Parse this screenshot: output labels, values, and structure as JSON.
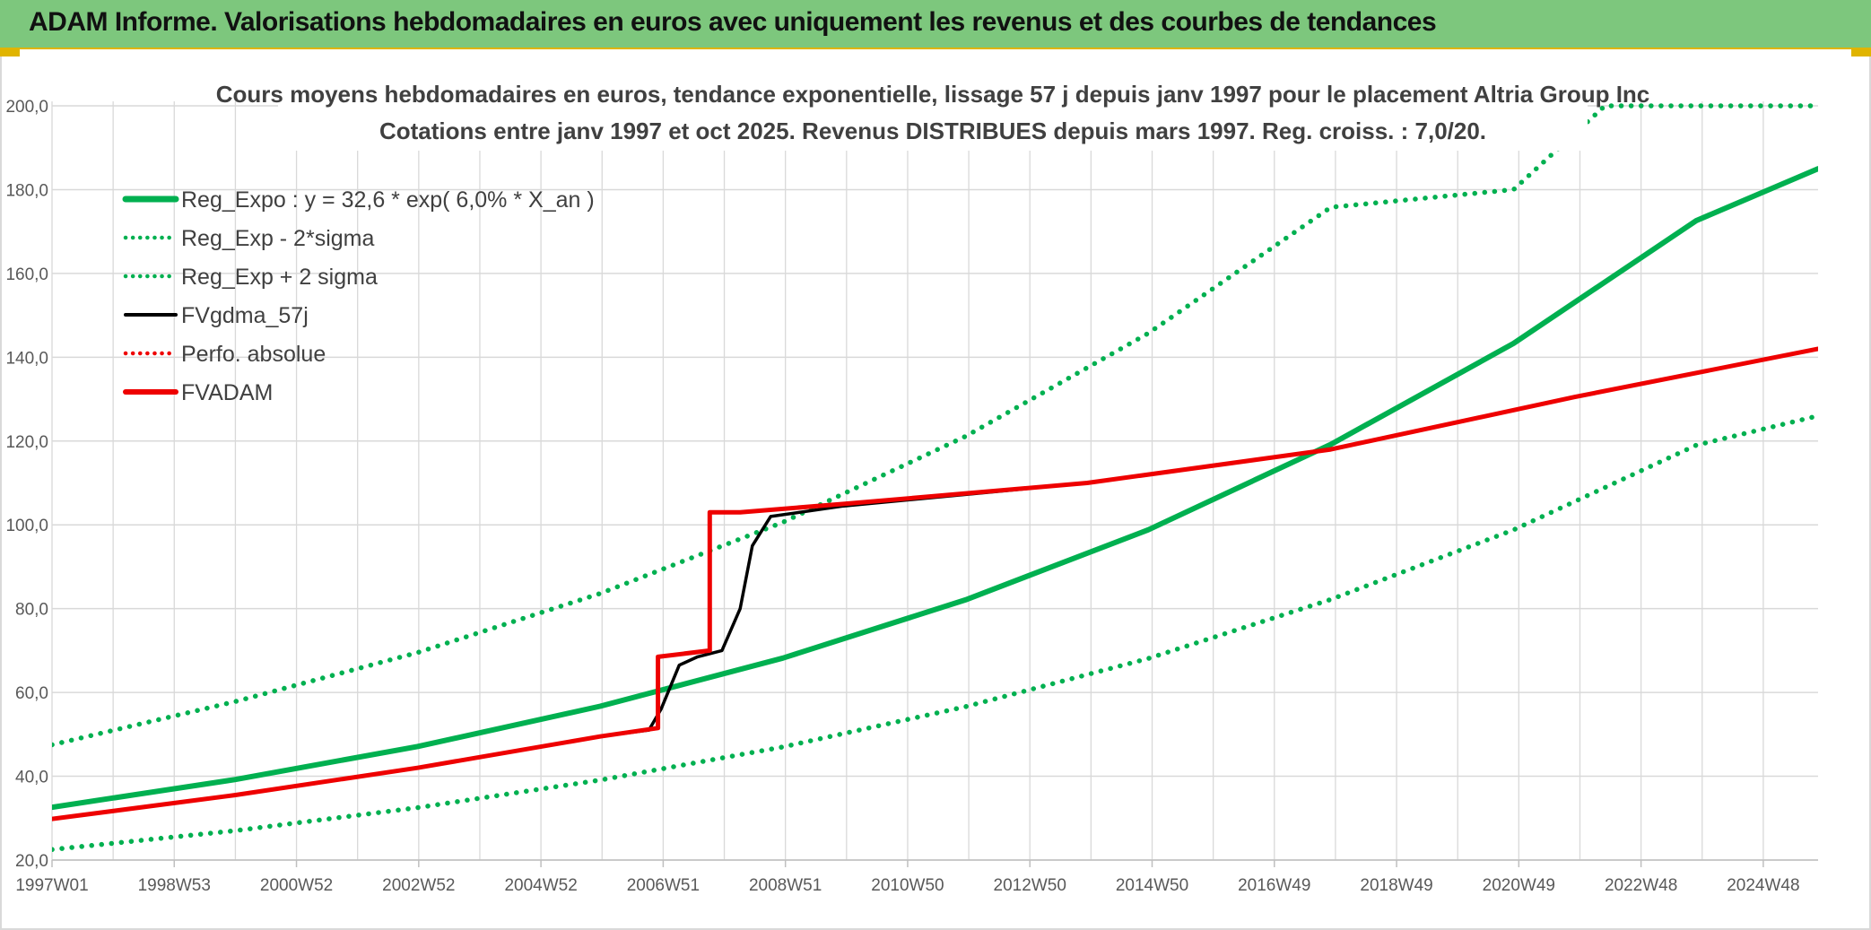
{
  "header": {
    "title": "ADAM Informe. Valorisations hebdomadaires en euros avec uniquement les revenus et des courbes de tendances"
  },
  "colors": {
    "header_bg": "#7dc77d",
    "accent_gold": "#e0b400",
    "green": "#00b050",
    "red": "#ee0000",
    "black": "#000000",
    "grid": "#d9d9d9"
  },
  "chart_data": {
    "type": "line",
    "title_lines": [
      "Cours moyens hebdomadaires en euros, tendance exponentielle, lissage 57 j depuis janv 1997 pour le placement Altria Group Inc",
      "Cotations entre janv 1997 et oct 2025. Revenus DISTRIBUES depuis mars 1997. Reg. croiss. : 7,0/20."
    ],
    "x_tick_labels": [
      "1997W01",
      "1998W53",
      "2000W52",
      "2002W52",
      "2004W52",
      "2006W51",
      "2008W51",
      "2010W50",
      "2012W50",
      "2014W50",
      "2016W49",
      "2018W49",
      "2020W49",
      "2022W48",
      "2024W48"
    ],
    "x_range_years": [
      1997.0,
      2026.0
    ],
    "y_tick_labels": [
      "20,0",
      "40,0",
      "60,0",
      "80,0",
      "100,0",
      "120,0",
      "140,0",
      "160,0",
      "180,0",
      "200,0"
    ],
    "ylim": [
      20,
      200
    ],
    "grid": true,
    "legend_position": "top-left",
    "series": [
      {
        "name": "Reg_Expo : y = 32,6 * exp( 6,0% *  X_an )",
        "color": "#00b050",
        "style": "solid",
        "x": [
          1997,
          2000,
          2003,
          2006,
          2009,
          2012,
          2015,
          2018,
          2021,
          2024,
          2026
        ],
        "y": [
          32.6,
          39.2,
          47.1,
          56.7,
          68.2,
          82.1,
          98.8,
          119.2,
          143.3,
          172.6,
          185.0
        ]
      },
      {
        "name": "Reg_Exp - 2*sigma",
        "color": "#00b050",
        "style": "dotted",
        "x": [
          1997,
          2000,
          2003,
          2006,
          2009,
          2012,
          2015,
          2018,
          2021,
          2024,
          2026
        ],
        "y": [
          22.5,
          27.0,
          32.5,
          39.1,
          47.0,
          56.6,
          68.1,
          82.2,
          98.8,
          119.0,
          126.0
        ]
      },
      {
        "name": "Reg_Exp + 2 sigma",
        "color": "#00b050",
        "style": "dotted",
        "x": [
          1997,
          2000,
          2003,
          2006,
          2009,
          2012,
          2015,
          2018,
          2021,
          2022.5,
          2026
        ],
        "y": [
          47.5,
          57.8,
          69.5,
          83.6,
          100.6,
          121.1,
          145.7,
          175.8,
          180.0,
          200.0,
          200.0
        ]
      },
      {
        "name": "FVgdma_57j",
        "color": "#000000",
        "style": "solid",
        "x": [
          1997,
          2000,
          2003,
          2006,
          2006.8,
          2007.0,
          2007.3,
          2007.6,
          2008.0,
          2008.3,
          2008.5,
          2008.8,
          2010,
          2014,
          2018,
          2022,
          2026
        ],
        "y": [
          29.8,
          35.5,
          42.0,
          49.5,
          51.0,
          56.0,
          66.5,
          68.5,
          70.0,
          80.0,
          95.0,
          102.0,
          104.5,
          110.0,
          118.0,
          130.5,
          142.0
        ]
      },
      {
        "name": "Perfo. absolue",
        "color": "#ee0000",
        "style": "dotted",
        "x": [],
        "y": []
      },
      {
        "name": "FVADAM",
        "color": "#ee0000",
        "style": "solid",
        "x": [
          1997,
          2000,
          2003,
          2006,
          2006.95,
          2006.95,
          2007.8,
          2007.8,
          2008.3,
          2008.3,
          2010,
          2014,
          2018,
          2022,
          2026
        ],
        "y": [
          29.8,
          35.5,
          42.0,
          49.5,
          51.5,
          68.5,
          70.0,
          103.0,
          103.0,
          103.0,
          105.0,
          110.0,
          118.0,
          130.5,
          142.0
        ]
      }
    ]
  }
}
